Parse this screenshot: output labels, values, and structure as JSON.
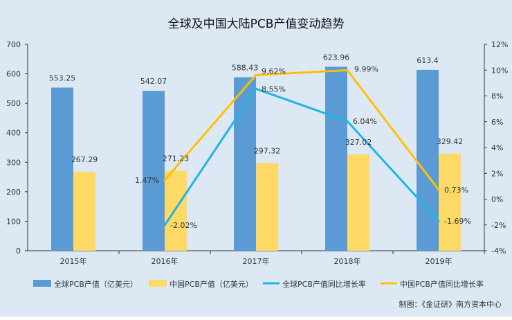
{
  "chart_data": {
    "type": "bar",
    "title": "全球及中国大陆PCB产值变动趋势",
    "categories": [
      "2015年",
      "2016年",
      "2017年",
      "2018年",
      "2019年"
    ],
    "y_left": {
      "ticks": [
        0,
        100,
        200,
        300,
        400,
        500,
        600,
        700
      ],
      "range": [
        0,
        700
      ]
    },
    "y_right": {
      "ticks": [
        "-4%",
        "-2%",
        "0%",
        "2%",
        "4%",
        "6%",
        "8%",
        "10%",
        "12%"
      ],
      "range": [
        -4,
        12
      ]
    },
    "bar_series": [
      {
        "name": "全球PCB产值（亿美元）",
        "color": "#5b9bd5",
        "values": [
          553.25,
          542.07,
          588.43,
          623.96,
          613.4
        ],
        "labels": [
          "553.25",
          "542.07",
          "588.43",
          "623.96",
          "613.4"
        ]
      },
      {
        "name": "中国PCB产值（亿美元）",
        "color": "#ffd966",
        "values": [
          267.29,
          271.23,
          297.32,
          327.02,
          329.42
        ],
        "labels": [
          "267.29",
          "271.23",
          "297.32",
          "327.02",
          "329.42"
        ]
      }
    ],
    "line_series": [
      {
        "name": "全球PCB产值同比增长率",
        "color": "#1eb4e6",
        "x": [
          "2016年",
          "2017年",
          "2018年",
          "2019年"
        ],
        "values": [
          -2.02,
          8.55,
          6.04,
          -1.69
        ],
        "labels": [
          "-2.02%",
          "8.55%",
          "6.04%",
          "-1.69%"
        ]
      },
      {
        "name": "中国PCB产值同比增长率",
        "color": "#ffc000",
        "x": [
          "2016年",
          "2017年",
          "2018年",
          "2019年"
        ],
        "values": [
          1.47,
          9.62,
          9.99,
          0.73
        ],
        "labels": [
          "1.47%",
          "9.62%",
          "9.99%",
          "0.73%"
        ]
      }
    ],
    "legend_position": "bottom",
    "grid": false
  },
  "source_note": "制图：《金证研》南方资本中心"
}
